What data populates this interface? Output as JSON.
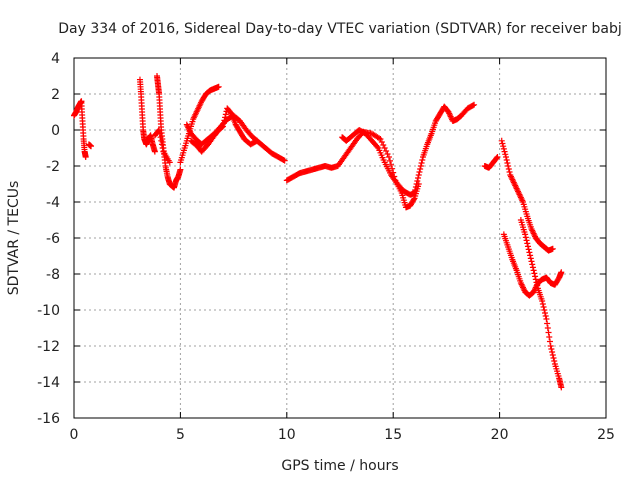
{
  "chart_data": {
    "type": "scatter",
    "title": "Day 334 of 2016, Sidereal Day-to-day VTEC variation (SDTVAR) for receiver babj",
    "xlabel": "GPS time / hours",
    "ylabel": "SDTVAR / TECUs",
    "xlim": [
      0,
      25
    ],
    "ylim": [
      -16,
      4
    ],
    "xticks": [
      0,
      5,
      10,
      15,
      20,
      25
    ],
    "yticks": [
      -16,
      -14,
      -12,
      -10,
      -8,
      -6,
      -4,
      -2,
      0,
      2,
      4
    ],
    "grid": true,
    "marker": "+",
    "color": "#ff0000",
    "series": [
      {
        "name": "seg1",
        "x": [
          0.0,
          0.1,
          0.2,
          0.3,
          0.35
        ],
        "y": [
          0.8,
          1.0,
          1.3,
          1.5,
          1.6
        ]
      },
      {
        "name": "seg2",
        "x": [
          0.35,
          0.4,
          0.45,
          0.5,
          0.55
        ],
        "y": [
          1.5,
          0.5,
          -0.5,
          -1.2,
          -1.5
        ]
      },
      {
        "name": "seg3",
        "x": [
          0.7,
          0.8
        ],
        "y": [
          -0.8,
          -0.9
        ]
      },
      {
        "name": "seg4",
        "x": [
          3.1,
          3.15,
          3.2,
          3.25,
          3.3,
          3.4,
          3.5,
          3.6,
          3.7,
          3.8
        ],
        "y": [
          2.8,
          2.0,
          1.0,
          0.0,
          -0.5,
          -0.8,
          -0.5,
          -0.3,
          -0.8,
          -1.2
        ]
      },
      {
        "name": "seg5",
        "x": [
          3.9,
          3.95,
          4.0,
          4.05,
          4.1,
          4.2,
          4.3,
          4.4,
          4.5,
          4.6,
          4.7,
          4.8,
          4.9,
          5.0
        ],
        "y": [
          3.0,
          2.5,
          2.0,
          1.0,
          0.0,
          -1.0,
          -2.0,
          -2.6,
          -3.0,
          -3.1,
          -3.2,
          -2.8,
          -2.6,
          -2.2
        ]
      },
      {
        "name": "seg6",
        "x": [
          3.8,
          4.0,
          4.2,
          4.5
        ],
        "y": [
          -0.3,
          0.0,
          -1.2,
          -1.8
        ]
      },
      {
        "name": "seg7",
        "x": [
          5.0,
          5.2,
          5.4,
          5.6,
          5.8,
          6.0,
          6.2,
          6.4,
          6.6,
          6.8
        ],
        "y": [
          -1.8,
          -1.0,
          -0.2,
          0.6,
          1.1,
          1.6,
          2.0,
          2.2,
          2.3,
          2.4
        ]
      },
      {
        "name": "seg8",
        "x": [
          5.3,
          5.5,
          5.8,
          6.0,
          6.3,
          6.6,
          6.9,
          7.2,
          7.5,
          7.8,
          8.1,
          8.4,
          8.7,
          9.0,
          9.3,
          9.6,
          9.9
        ],
        "y": [
          0.3,
          -0.2,
          -0.6,
          -0.8,
          -0.5,
          -0.2,
          0.2,
          0.6,
          0.8,
          0.5,
          0.0,
          -0.4,
          -0.7,
          -1.0,
          -1.3,
          -1.5,
          -1.7
        ]
      },
      {
        "name": "seg9",
        "x": [
          5.5,
          5.8,
          6.0,
          6.3,
          6.6,
          6.8,
          7.0,
          7.2,
          7.4,
          7.6,
          7.8,
          8.0,
          8.3,
          8.6
        ],
        "y": [
          -0.6,
          -0.9,
          -1.2,
          -0.8,
          -0.3,
          0.0,
          0.2,
          1.2,
          0.9,
          0.3,
          -0.1,
          -0.5,
          -0.8,
          -0.6
        ]
      },
      {
        "name": "seg10",
        "x": [
          10.0,
          10.3,
          10.6,
          10.9,
          11.2,
          11.5,
          11.8,
          12.1,
          12.4,
          12.7,
          13.0,
          13.3,
          13.6,
          14.0,
          14.4,
          14.8,
          15.1,
          15.4,
          15.6,
          15.8,
          16.0,
          16.2
        ],
        "y": [
          -2.8,
          -2.6,
          -2.4,
          -2.3,
          -2.2,
          -2.1,
          -2.0,
          -2.1,
          -2.0,
          -1.5,
          -1.0,
          -0.5,
          -0.1,
          -0.2,
          -0.5,
          -1.5,
          -2.8,
          -3.5,
          -4.3,
          -4.2,
          -3.8,
          -3.0
        ]
      },
      {
        "name": "seg11",
        "x": [
          12.6,
          12.8,
          13.1,
          13.4,
          13.7,
          14.0,
          14.3,
          14.6,
          14.9,
          15.2,
          15.5,
          15.8,
          16.0,
          16.2,
          16.4,
          16.6,
          16.8,
          17.0,
          17.2,
          17.4,
          17.6,
          17.8,
          18.0,
          18.2,
          18.5,
          18.8
        ],
        "y": [
          -0.4,
          -0.6,
          -0.3,
          0.0,
          -0.2,
          -0.6,
          -1.0,
          -1.8,
          -2.5,
          -3.0,
          -3.4,
          -3.6,
          -3.5,
          -2.5,
          -1.5,
          -0.8,
          -0.2,
          0.5,
          0.9,
          1.3,
          1.0,
          0.5,
          0.6,
          0.8,
          1.2,
          1.4
        ]
      },
      {
        "name": "seg12",
        "x": [
          19.3,
          19.5,
          19.7,
          19.9
        ],
        "y": [
          -2.0,
          -2.1,
          -1.8,
          -1.5
        ]
      },
      {
        "name": "seg13",
        "x": [
          20.1,
          20.3,
          20.5,
          20.7,
          20.9,
          21.1,
          21.3,
          21.5,
          21.7,
          21.9,
          22.1,
          22.3,
          22.5
        ],
        "y": [
          -0.6,
          -1.5,
          -2.5,
          -3.0,
          -3.5,
          -4.0,
          -4.8,
          -5.5,
          -6.0,
          -6.3,
          -6.5,
          -6.7,
          -6.6
        ]
      },
      {
        "name": "seg14",
        "x": [
          20.2,
          20.4,
          20.6,
          20.8,
          21.0,
          21.2,
          21.4,
          21.6,
          21.8,
          22.0,
          22.2,
          22.4,
          22.6,
          22.8,
          22.9
        ],
        "y": [
          -5.8,
          -6.5,
          -7.2,
          -7.8,
          -8.5,
          -9.0,
          -9.2,
          -9.0,
          -8.5,
          -8.3,
          -8.2,
          -8.5,
          -8.6,
          -8.2,
          -7.9
        ]
      },
      {
        "name": "seg15",
        "x": [
          21.0,
          21.2,
          21.4,
          21.6,
          21.8,
          22.0,
          22.2,
          22.4,
          22.6,
          22.8,
          22.9
        ],
        "y": [
          -5.0,
          -5.8,
          -6.8,
          -7.8,
          -8.8,
          -9.5,
          -10.5,
          -12.0,
          -13.0,
          -13.8,
          -14.3
        ]
      }
    ]
  }
}
